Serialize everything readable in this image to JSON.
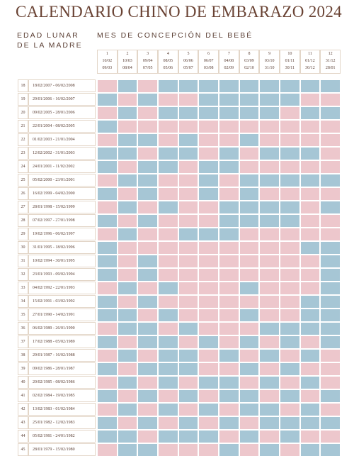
{
  "title": "CALENDARIO CHINO DE EMBARAZO 2024",
  "age_label": [
    "EDAD LUNAR",
    "DE LA MADRE"
  ],
  "month_label": "MES DE CONCEPCIÓN DEL BEBÉ",
  "colors": [
    "#edc7cc",
    "#a6c6d5"
  ],
  "columns": [
    {
      "num": "1",
      "from": "10/02",
      "to": "09/03"
    },
    {
      "num": "2",
      "from": "10/03",
      "to": "08/04"
    },
    {
      "num": "3",
      "from": "09/04",
      "to": "07/05"
    },
    {
      "num": "4",
      "from": "08/05",
      "to": "05/06"
    },
    {
      "num": "5",
      "from": "06/06",
      "to": "05/07"
    },
    {
      "num": "6",
      "from": "06/07",
      "to": "03/08"
    },
    {
      "num": "7",
      "from": "04/08",
      "to": "02/09"
    },
    {
      "num": "8",
      "from": "03/09",
      "to": "02/10"
    },
    {
      "num": "9",
      "from": "03/10",
      "to": "31/10"
    },
    {
      "num": "10",
      "from": "01/11",
      "to": "30/11"
    },
    {
      "num": "11",
      "from": "01/12",
      "to": "30/12"
    },
    {
      "num": "12",
      "from": "31/12",
      "to": "28/01"
    }
  ],
  "rows": [
    {
      "age": "18",
      "dates": "18/02/2007 - 06/02/2008",
      "cells": [
        0,
        1,
        0,
        1,
        1,
        1,
        1,
        1,
        1,
        1,
        1,
        1
      ]
    },
    {
      "age": "19",
      "dates": "29/01/2006 - 16/02/2007",
      "cells": [
        1,
        0,
        1,
        0,
        0,
        1,
        1,
        1,
        1,
        1,
        0,
        0
      ]
    },
    {
      "age": "20",
      "dates": "09/02/2005 - 28/01/2006",
      "cells": [
        0,
        1,
        0,
        1,
        1,
        1,
        1,
        1,
        1,
        0,
        1,
        1
      ]
    },
    {
      "age": "21",
      "dates": "22/01/2004 - 08/02/2005",
      "cells": [
        1,
        0,
        0,
        0,
        0,
        0,
        0,
        0,
        0,
        0,
        0,
        0
      ]
    },
    {
      "age": "22",
      "dates": "01/02/2003 - 21/01/2004",
      "cells": [
        0,
        1,
        1,
        0,
        1,
        0,
        0,
        1,
        0,
        0,
        0,
        0
      ]
    },
    {
      "age": "23",
      "dates": "12/02/2002 - 31/01/2003",
      "cells": [
        1,
        1,
        0,
        1,
        1,
        0,
        1,
        0,
        1,
        1,
        1,
        0
      ]
    },
    {
      "age": "24",
      "dates": "24/01/2001 - 11/02/2002",
      "cells": [
        1,
        0,
        1,
        1,
        0,
        1,
        1,
        0,
        0,
        0,
        0,
        0
      ]
    },
    {
      "age": "25",
      "dates": "05/02/2000 - 23/01/2001",
      "cells": [
        0,
        1,
        1,
        0,
        0,
        1,
        0,
        1,
        1,
        1,
        1,
        1
      ]
    },
    {
      "age": "26",
      "dates": "16/02/1999 - 04/02/2000",
      "cells": [
        1,
        0,
        1,
        0,
        0,
        1,
        0,
        1,
        0,
        0,
        0,
        0
      ]
    },
    {
      "age": "27",
      "dates": "28/01/1998 - 15/02/1999",
      "cells": [
        0,
        1,
        0,
        1,
        0,
        0,
        1,
        1,
        1,
        1,
        0,
        1
      ]
    },
    {
      "age": "28",
      "dates": "07/02/1997 - 27/01/1998",
      "cells": [
        1,
        0,
        1,
        0,
        0,
        0,
        1,
        1,
        1,
        1,
        0,
        0
      ]
    },
    {
      "age": "29",
      "dates": "19/02/1996 - 06/02/1997",
      "cells": [
        0,
        1,
        0,
        0,
        1,
        1,
        1,
        0,
        0,
        0,
        0,
        0
      ]
    },
    {
      "age": "30",
      "dates": "31/01/1995 - 18/02/1996",
      "cells": [
        1,
        0,
        0,
        0,
        0,
        0,
        0,
        0,
        0,
        0,
        1,
        1
      ]
    },
    {
      "age": "31",
      "dates": "10/02/1994 - 30/01/1995",
      "cells": [
        1,
        0,
        1,
        0,
        0,
        0,
        0,
        0,
        0,
        0,
        0,
        1
      ]
    },
    {
      "age": "32",
      "dates": "23/01/1993 - 09/02/1994",
      "cells": [
        1,
        0,
        1,
        0,
        0,
        0,
        0,
        0,
        0,
        0,
        0,
        1
      ]
    },
    {
      "age": "33",
      "dates": "04/02/1992 - 22/01/1993",
      "cells": [
        0,
        1,
        0,
        1,
        0,
        0,
        0,
        1,
        0,
        0,
        0,
        1
      ]
    },
    {
      "age": "34",
      "dates": "15/02/1991 - 03/02/1992",
      "cells": [
        1,
        0,
        1,
        0,
        0,
        0,
        0,
        0,
        0,
        0,
        1,
        1
      ]
    },
    {
      "age": "35",
      "dates": "27/01/1990 - 14/02/1991",
      "cells": [
        1,
        1,
        0,
        1,
        0,
        0,
        0,
        1,
        0,
        0,
        1,
        1
      ]
    },
    {
      "age": "36",
      "dates": "06/02/1989 - 26/01/1990",
      "cells": [
        0,
        1,
        1,
        0,
        1,
        0,
        0,
        0,
        1,
        1,
        1,
        1
      ]
    },
    {
      "age": "37",
      "dates": "17/02/1988 - 05/02/1989",
      "cells": [
        1,
        0,
        1,
        1,
        0,
        1,
        0,
        1,
        0,
        1,
        0,
        1
      ]
    },
    {
      "age": "38",
      "dates": "29/01/1987 - 16/02/1988",
      "cells": [
        0,
        1,
        0,
        1,
        1,
        0,
        1,
        0,
        1,
        0,
        1,
        0
      ]
    },
    {
      "age": "39",
      "dates": "09/02/1986 - 28/01/1987",
      "cells": [
        1,
        0,
        1,
        1,
        1,
        0,
        0,
        1,
        0,
        1,
        0,
        0
      ]
    },
    {
      "age": "40",
      "dates": "20/02/1985 - 08/02/1986",
      "cells": [
        0,
        1,
        0,
        1,
        0,
        1,
        1,
        0,
        1,
        0,
        1,
        0
      ]
    },
    {
      "age": "41",
      "dates": "02/02/1984 - 19/02/1985",
      "cells": [
        1,
        0,
        1,
        0,
        1,
        0,
        1,
        1,
        0,
        1,
        0,
        1
      ]
    },
    {
      "age": "42",
      "dates": "13/02/1983 - 01/02/1984",
      "cells": [
        0,
        1,
        0,
        1,
        0,
        1,
        0,
        1,
        1,
        0,
        1,
        0
      ]
    },
    {
      "age": "43",
      "dates": "25/01/1982 - 12/02/1983",
      "cells": [
        1,
        0,
        1,
        0,
        1,
        0,
        1,
        0,
        1,
        1,
        1,
        1
      ]
    },
    {
      "age": "44",
      "dates": "05/02/1981 - 24/01/1982",
      "cells": [
        1,
        1,
        0,
        1,
        1,
        1,
        0,
        1,
        0,
        1,
        0,
        0
      ]
    },
    {
      "age": "45",
      "dates": "28/01/1979 - 15/02/1980",
      "cells": [
        0,
        1,
        1,
        0,
        0,
        0,
        1,
        0,
        1,
        0,
        1,
        1
      ]
    }
  ]
}
